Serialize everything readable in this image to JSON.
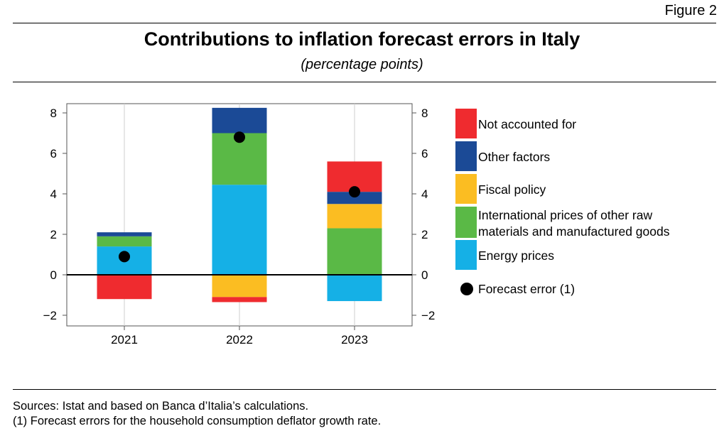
{
  "figure_label": "Figure 2",
  "title": "Contributions to inflation forecast errors in Italy",
  "subtitle": "(percentage points)",
  "notes": {
    "sources": "Sources: Istat and based on Banca d’Italia’s calculations.",
    "footnote": "(1) Forecast errors for the household consumption deflator growth rate."
  },
  "chart_data": {
    "type": "bar",
    "stacked": true,
    "categories": [
      "2021",
      "2022",
      "2023"
    ],
    "ylim": [
      -2.5,
      8.5
    ],
    "yticks": [
      -2,
      0,
      2,
      4,
      6,
      8
    ],
    "ytick_labels": [
      "−2",
      "0",
      "2",
      "4",
      "6",
      "8"
    ],
    "series": [
      {
        "name": "Energy prices",
        "color": "#15b0e6",
        "values": [
          1.4,
          4.45,
          -1.3
        ]
      },
      {
        "name": "International prices of other raw materials and manufactured goods",
        "color": "#5ab946",
        "values": [
          0.5,
          2.55,
          2.3
        ]
      },
      {
        "name": "Fiscal policy",
        "color": "#fbbd22",
        "values": [
          0.0,
          -1.1,
          1.2
        ]
      },
      {
        "name": "Other factors",
        "color": "#1b4a96",
        "values": [
          0.2,
          1.25,
          0.6
        ]
      },
      {
        "name": "Not accounted for",
        "color": "#ef2b2f",
        "values": [
          -1.2,
          -0.25,
          1.5
        ]
      }
    ],
    "forecast_error": {
      "name": "Forecast error (1)",
      "values": [
        0.9,
        6.8,
        4.1
      ]
    },
    "legend": {
      "position": "right",
      "items": [
        {
          "label": "Not accounted for",
          "color": "#ef2b2f",
          "shape": "square"
        },
        {
          "label": "Other factors",
          "color": "#1b4a96",
          "shape": "square"
        },
        {
          "label": "Fiscal policy",
          "color": "#fbbd22",
          "shape": "square"
        },
        {
          "label": "International prices of other raw materials and manufactured goods",
          "line1": "International prices of other raw",
          "line2": "materials and manufactured goods",
          "color": "#5ab946",
          "shape": "square"
        },
        {
          "label": "Energy prices",
          "color": "#15b0e6",
          "shape": "square"
        },
        {
          "label": "Forecast error (1)",
          "color": "#000000",
          "shape": "circle"
        }
      ]
    },
    "grid": "vertical"
  }
}
